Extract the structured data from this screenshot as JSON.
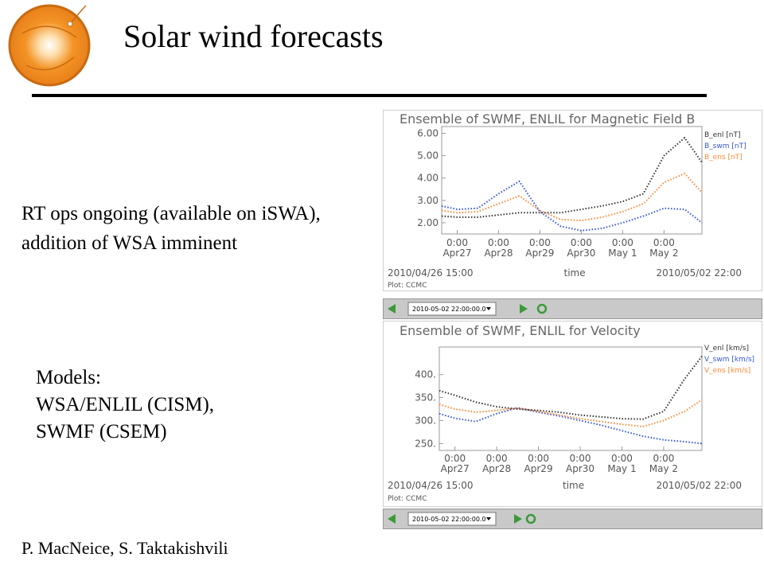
{
  "header": {
    "title": "Solar wind forecasts"
  },
  "body": {
    "status": "RT ops ongoing (available on iSWA),  addition of WSA imminent",
    "models_heading": "Models:",
    "models": [
      "WSA/ENLIL (CISM),",
      "SWMF (CSEM)"
    ]
  },
  "footer": {
    "authors": "P. MacNeice, S. Taktakishvili"
  },
  "toolbars": [
    {
      "date": "2010-05-02 22:00:00.0"
    },
    {
      "date": "2010-05-02 22:00:00.0"
    }
  ],
  "chart_data": [
    {
      "type": "line",
      "title": "Ensemble of SWMF, ENLIL for Magnetic Field B",
      "xlabel": "time",
      "note": "Plot: CCMC",
      "x": [
        "2010/04/26 15:00",
        "2010/04/27 00:00",
        "2010/04/27 12:00",
        "2010/04/28 00:00",
        "2010/04/28 12:00",
        "2010/04/29 00:00",
        "2010/04/29 12:00",
        "2010/04/30 00:00",
        "2010/04/30 12:00",
        "2010/05/01 00:00",
        "2010/05/01 12:00",
        "2010/05/02 00:00",
        "2010/05/02 12:00",
        "2010/05/02 22:00"
      ],
      "xlim": [
        "2010/04/26 15:00",
        "2010/05/02 22:00"
      ],
      "xticks": [
        {
          "value": "2010/04/27 00:00",
          "label": "0:00 Apr27"
        },
        {
          "value": "2010/04/28 00:00",
          "label": "0:00 Apr28"
        },
        {
          "value": "2010/04/29 00:00",
          "label": "0:00 Apr29"
        },
        {
          "value": "2010/04/30 00:00",
          "label": "0:00 Apr30"
        },
        {
          "value": "2010/05/01 00:00",
          "label": "0:00 May 1"
        },
        {
          "value": "2010/05/02 00:00",
          "label": "0:00 May 2"
        }
      ],
      "ylim": [
        1.5,
        6.3
      ],
      "yticks": [
        {
          "value": 2,
          "label": "2.00"
        },
        {
          "value": 3,
          "label": "3.00"
        },
        {
          "value": 4,
          "label": "4.00"
        },
        {
          "value": 5,
          "label": "5.00"
        },
        {
          "value": 6,
          "label": "6.00"
        }
      ],
      "series": [
        {
          "name": "B_enl [nT]",
          "color": "#333333",
          "values": [
            2.3,
            2.25,
            2.25,
            2.35,
            2.45,
            2.45,
            2.45,
            2.6,
            2.75,
            2.95,
            3.3,
            5.0,
            5.8,
            4.7
          ]
        },
        {
          "name": "B_swm [nT]",
          "color": "#3355dd",
          "values": [
            2.75,
            2.6,
            2.65,
            3.3,
            3.85,
            2.5,
            1.85,
            1.65,
            1.75,
            2.0,
            2.3,
            2.65,
            2.6,
            2.0
          ]
        },
        {
          "name": "B_ens [nT]",
          "color": "#ff8833",
          "values": [
            2.55,
            2.45,
            2.5,
            2.85,
            3.2,
            2.55,
            2.15,
            2.1,
            2.25,
            2.5,
            2.85,
            3.8,
            4.2,
            3.35
          ]
        }
      ]
    },
    {
      "type": "line",
      "title": "Ensemble of SWMF, ENLIL for Velocity",
      "xlabel": "time",
      "note": "Plot: CCMC",
      "x": [
        "2010/04/26 15:00",
        "2010/04/27 00:00",
        "2010/04/27 12:00",
        "2010/04/28 00:00",
        "2010/04/28 12:00",
        "2010/04/29 00:00",
        "2010/04/29 12:00",
        "2010/04/30 00:00",
        "2010/04/30 12:00",
        "2010/05/01 00:00",
        "2010/05/01 12:00",
        "2010/05/02 00:00",
        "2010/05/02 12:00",
        "2010/05/02 22:00"
      ],
      "xlim": [
        "2010/04/26 15:00",
        "2010/05/02 22:00"
      ],
      "xticks": [
        {
          "value": "2010/04/27 00:00",
          "label": "0:00 Apr27"
        },
        {
          "value": "2010/04/28 00:00",
          "label": "0:00 Apr28"
        },
        {
          "value": "2010/04/29 00:00",
          "label": "0:00 Apr29"
        },
        {
          "value": "2010/04/30 00:00",
          "label": "0:00 Apr30"
        },
        {
          "value": "2010/05/01 00:00",
          "label": "0:00 May 1"
        },
        {
          "value": "2010/05/02 00:00",
          "label": "0:00 May 2"
        }
      ],
      "ylim": [
        235,
        460
      ],
      "yticks": [
        {
          "value": 250,
          "label": "250."
        },
        {
          "value": 300,
          "label": "300."
        },
        {
          "value": 350,
          "label": "350."
        },
        {
          "value": 400,
          "label": "400."
        }
      ],
      "series": [
        {
          "name": "V_enl [km/s]",
          "color": "#333333",
          "values": [
            365,
            355,
            340,
            330,
            325,
            322,
            318,
            312,
            308,
            304,
            303,
            320,
            390,
            440
          ]
        },
        {
          "name": "V_swm [km/s]",
          "color": "#3355dd",
          "values": [
            315,
            305,
            298,
            315,
            328,
            318,
            310,
            300,
            290,
            278,
            266,
            258,
            254,
            250
          ]
        },
        {
          "name": "V_ens [km/s]",
          "color": "#ff8833",
          "values": [
            335,
            325,
            318,
            322,
            327,
            320,
            312,
            304,
            298,
            292,
            287,
            300,
            320,
            345
          ]
        }
      ]
    }
  ]
}
